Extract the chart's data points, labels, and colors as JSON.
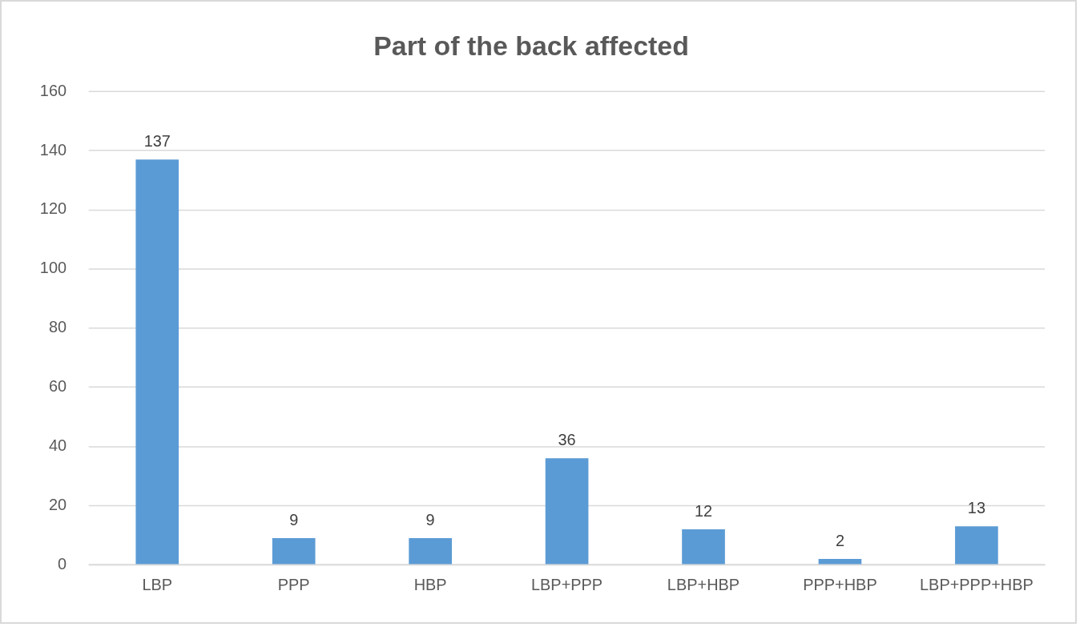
{
  "chart_data": {
    "type": "bar",
    "title": "Part of the back affected",
    "categories": [
      "LBP",
      "PPP",
      "HBP",
      "LBP+PPP",
      "LBP+HBP",
      "PPP+HBP",
      "LBP+PPP+HBP"
    ],
    "values": [
      137,
      9,
      9,
      36,
      12,
      2,
      13
    ],
    "color": "#5b9bd5",
    "ylim": [
      0,
      160
    ],
    "yticks": [
      0,
      20,
      40,
      60,
      80,
      100,
      120,
      140,
      160
    ],
    "grid": "y",
    "legend": false,
    "data_labels": true
  }
}
